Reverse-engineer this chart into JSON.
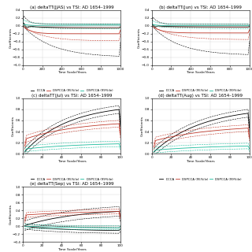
{
  "titles": [
    "(a) deltaTT(JJAS) vs TSI: AD 1654–1999",
    "(b) deltaTT(Jun) vs TSI: AD 1654–1999",
    "(c) deltaTT(Jul) vs TSI: AD 1654–1999",
    "(d) deltaTT(Aug) vs TSI: AD 1654–1999",
    "(e) deltaTT(Sep) vs TSI: AD 1654–1999"
  ],
  "xlabel": "Time Scale/Years",
  "ylabel": "Coefficients",
  "xlim_ab": [
    0,
    1000
  ],
  "xlim_cd": [
    0,
    100
  ],
  "xlim_e": [
    0,
    100
  ],
  "legend_labels": [
    "DCCA",
    "DSPCCA (95%ile)",
    "DSPCCA (99%ile)"
  ],
  "colors": {
    "dcca": "#000000",
    "dspcca95": "#c0392b",
    "dspcca99": "#1abc9c"
  },
  "bg_color": "#ffffff",
  "grid_color": "#cccccc"
}
